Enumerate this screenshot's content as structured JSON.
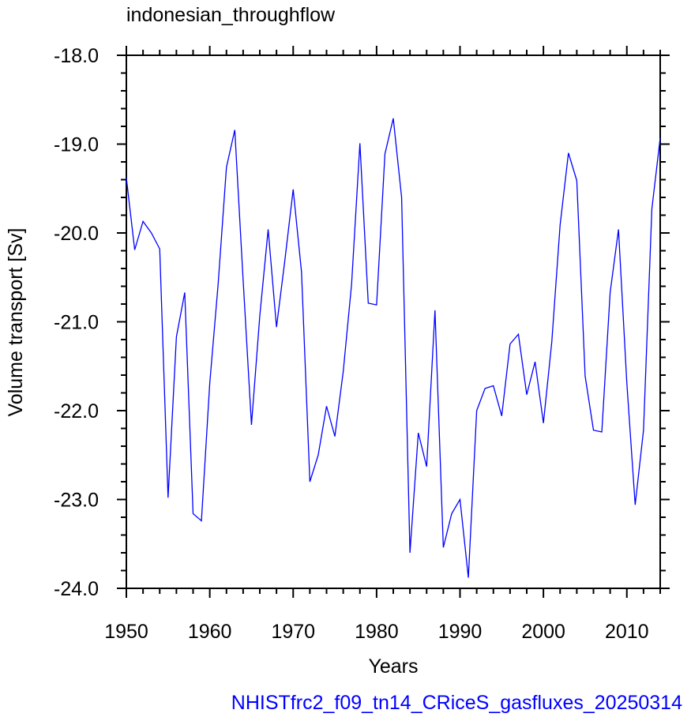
{
  "chart_data": {
    "type": "line",
    "title": "indonesian_throughflow",
    "xlabel": "Years",
    "ylabel": "Volume transport [Sv]",
    "annotation": "NHISTfrc2_f09_tn14_CRiceS_gasfluxes_20250314",
    "x": [
      1950,
      1951,
      1952,
      1953,
      1954,
      1955,
      1956,
      1957,
      1958,
      1959,
      1960,
      1961,
      1962,
      1963,
      1964,
      1965,
      1966,
      1967,
      1968,
      1969,
      1970,
      1971,
      1972,
      1973,
      1974,
      1975,
      1976,
      1977,
      1978,
      1979,
      1980,
      1981,
      1982,
      1983,
      1984,
      1985,
      1986,
      1987,
      1988,
      1989,
      1990,
      1991,
      1992,
      1993,
      1994,
      1995,
      1996,
      1997,
      1998,
      1999,
      2000,
      2001,
      2002,
      2003,
      2004,
      2005,
      2006,
      2007,
      2008,
      2009,
      2010,
      2011,
      2012,
      2013,
      2014
    ],
    "series": [
      {
        "color": "#0000ff",
        "values": [
          -19.38,
          -20.19,
          -19.87,
          -20.0,
          -20.18,
          -22.98,
          -21.17,
          -20.67,
          -23.16,
          -23.24,
          -21.69,
          -20.58,
          -19.26,
          -18.84,
          -20.53,
          -22.16,
          -20.93,
          -19.96,
          -21.06,
          -20.31,
          -19.51,
          -20.44,
          -22.8,
          -22.5,
          -21.95,
          -22.29,
          -21.56,
          -20.58,
          -18.99,
          -20.79,
          -20.81,
          -19.11,
          -18.71,
          -19.6,
          -23.6,
          -22.25,
          -22.63,
          -20.87,
          -23.54,
          -23.16,
          -23.0,
          -23.88,
          -22.0,
          -21.75,
          -21.72,
          -22.06,
          -21.25,
          -21.14,
          -21.82,
          -21.45,
          -22.14,
          -21.23,
          -19.91,
          -19.1,
          -19.41,
          -21.61,
          -22.22,
          -22.24,
          -20.67,
          -19.96,
          -21.69,
          -23.06,
          -22.22,
          -19.73,
          -18.93
        ]
      }
    ],
    "xlim": [
      1950,
      2014
    ],
    "ylim": [
      -24,
      -18
    ],
    "xticks": [
      1950,
      1960,
      1970,
      1980,
      1990,
      2000,
      2010
    ],
    "yticks": [
      {
        "value": -24,
        "label": "-24.0"
      },
      {
        "value": -23,
        "label": "-23.0"
      },
      {
        "value": -22,
        "label": "-22.0"
      },
      {
        "value": -21,
        "label": "-21.0"
      },
      {
        "value": -20,
        "label": "-20.0"
      },
      {
        "value": -19,
        "label": "-19.0"
      },
      {
        "value": -18,
        "label": "-18.0"
      }
    ]
  }
}
